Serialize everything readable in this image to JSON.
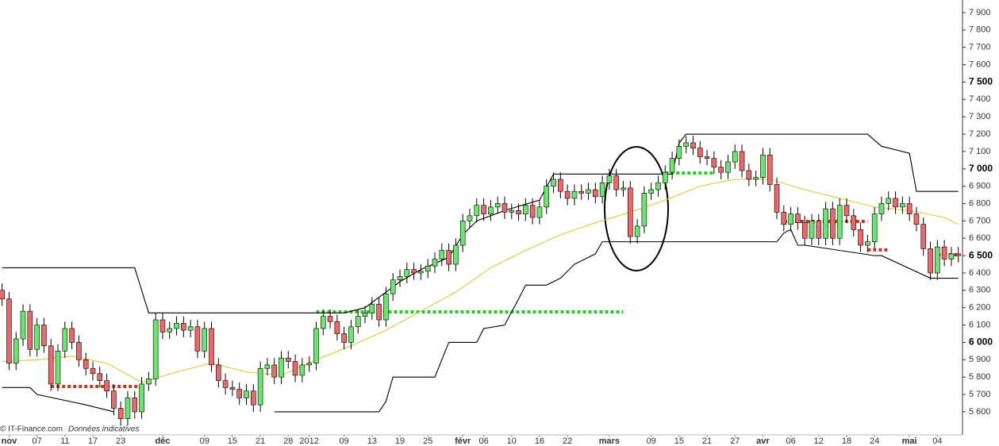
{
  "chart_data": {
    "type": "candlestick",
    "source": "© IT-Finance.com",
    "note": "Données indicatives",
    "xlim": [
      -0.3,
      137.6
    ],
    "ylim": [
      5467,
      7973
    ],
    "yticks": [
      {
        "value": 5600,
        "label": "5 600"
      },
      {
        "value": 5700,
        "label": "5 700"
      },
      {
        "value": 5800,
        "label": "5 800"
      },
      {
        "value": 5900,
        "label": "5 900"
      },
      {
        "value": 6000,
        "label": "6 000"
      },
      {
        "value": 6100,
        "label": "6 100"
      },
      {
        "value": 6200,
        "label": "6 200"
      },
      {
        "value": 6300,
        "label": "6 300"
      },
      {
        "value": 6400,
        "label": "6 400"
      },
      {
        "value": 6500,
        "label": "6 500"
      },
      {
        "value": 6600,
        "label": "6 600"
      },
      {
        "value": 6700,
        "label": "6 700"
      },
      {
        "value": 6800,
        "label": "6 800"
      },
      {
        "value": 6900,
        "label": "6 900"
      },
      {
        "value": 7000,
        "label": "7 000"
      },
      {
        "value": 7100,
        "label": "7 100"
      },
      {
        "value": 7200,
        "label": "7 200"
      },
      {
        "value": 7300,
        "label": "7 300"
      },
      {
        "value": 7400,
        "label": "7 400"
      },
      {
        "value": 7500,
        "label": "7 500"
      },
      {
        "value": 7600,
        "label": "7 600"
      },
      {
        "value": 7700,
        "label": "7 700"
      },
      {
        "value": 7800,
        "label": "7 800"
      },
      {
        "value": 7900,
        "label": "7 900"
      }
    ],
    "xticks": [
      {
        "value": 1,
        "label": "nov"
      },
      {
        "value": 5,
        "label": "07"
      },
      {
        "value": 9,
        "label": "11"
      },
      {
        "value": 13,
        "label": "17"
      },
      {
        "value": 17,
        "label": "23"
      },
      {
        "value": 23,
        "label": "déc"
      },
      {
        "value": 29,
        "label": "09"
      },
      {
        "value": 33,
        "label": "15"
      },
      {
        "value": 37,
        "label": "21"
      },
      {
        "value": 41,
        "label": "28"
      },
      {
        "value": 44,
        "label": "2012"
      },
      {
        "value": 49,
        "label": "09"
      },
      {
        "value": 53,
        "label": "13"
      },
      {
        "value": 57,
        "label": "19"
      },
      {
        "value": 61,
        "label": "25"
      },
      {
        "value": 66,
        "label": "févr"
      },
      {
        "value": 69,
        "label": "06"
      },
      {
        "value": 73,
        "label": "10"
      },
      {
        "value": 77,
        "label": "16"
      },
      {
        "value": 81,
        "label": "22"
      },
      {
        "value": 87,
        "label": "mars"
      },
      {
        "value": 93,
        "label": "09"
      },
      {
        "value": 97,
        "label": "15"
      },
      {
        "value": 101,
        "label": "21"
      },
      {
        "value": 105,
        "label": "27"
      },
      {
        "value": 109,
        "label": "avr"
      },
      {
        "value": 113,
        "label": "06"
      },
      {
        "value": 117,
        "label": "12"
      },
      {
        "value": 121,
        "label": "18"
      },
      {
        "value": 125,
        "label": "24"
      },
      {
        "value": 130,
        "label": "mai"
      },
      {
        "value": 134,
        "label": "04"
      }
    ],
    "up_color": "#6fe36f",
    "down_color": "#e86a6a",
    "open": [
      6300,
      6250,
      5880,
      6020,
      6180,
      5960,
      6100,
      5980,
      5760,
      5950,
      6080,
      6000,
      5900,
      5850,
      5820,
      5780,
      5720,
      5620,
      5560,
      5680,
      5600,
      5760,
      5790,
      6130,
      6060,
      6080,
      6110,
      6070,
      6090,
      5950,
      6080,
      5870,
      5780,
      5740,
      5730,
      5680,
      5720,
      5640,
      5850,
      5870,
      5800,
      5910,
      5890,
      5810,
      5870,
      5880,
      6080,
      6150,
      6120,
      6050,
      6000,
      6090,
      6150,
      6170,
      6220,
      6130,
      6280,
      6360,
      6380,
      6420,
      6400,
      6410,
      6440,
      6480,
      6530,
      6450,
      6560,
      6700,
      6730,
      6790,
      6740,
      6780,
      6800,
      6750,
      6760,
      6740,
      6790,
      6720,
      6780,
      6900,
      6940,
      6870,
      6830,
      6870,
      6860,
      6880,
      6840,
      6920,
      6960,
      6880,
      6890,
      6610,
      6670,
      6860,
      6880,
      6920,
      6980,
      7060,
      7130,
      7150,
      7120,
      7070,
      7060,
      7010,
      6980,
      7040,
      7100,
      6990,
      6940,
      6950,
      7080,
      6910,
      6750,
      6680,
      6740,
      6690,
      6600,
      6700,
      6600,
      6770,
      6600,
      6790,
      6730,
      6650,
      6560,
      6580,
      6740,
      6800,
      6830,
      6780,
      6800,
      6740,
      6680,
      6540,
      6400,
      6550,
      6480,
      6510
    ],
    "high": [
      6340,
      6290,
      6060,
      6220,
      6220,
      6140,
      6140,
      6020,
      5990,
      6120,
      6120,
      6040,
      5940,
      5890,
      5860,
      5820,
      5760,
      5660,
      5720,
      5720,
      5800,
      5830,
      6170,
      6170,
      6120,
      6150,
      6150,
      6130,
      6130,
      6120,
      6120,
      5910,
      5820,
      5780,
      5770,
      5760,
      5760,
      5890,
      5910,
      5910,
      5950,
      5950,
      5930,
      5910,
      5920,
      6120,
      6190,
      6190,
      6160,
      6090,
      6130,
      6190,
      6210,
      6260,
      6260,
      6320,
      6400,
      6420,
      6460,
      6460,
      6450,
      6480,
      6520,
      6570,
      6570,
      6600,
      6740,
      6770,
      6830,
      6830,
      6820,
      6840,
      6840,
      6800,
      6800,
      6830,
      6830,
      6820,
      6940,
      6980,
      6980,
      6910,
      6910,
      6910,
      6920,
      6920,
      6960,
      7000,
      7000,
      6930,
      6930,
      6710,
      6900,
      6920,
      6960,
      7020,
      7100,
      7170,
      7190,
      7190,
      7160,
      7110,
      7100,
      7050,
      7080,
      7140,
      7140,
      7030,
      6990,
      7120,
      7120,
      6950,
      6790,
      6780,
      6780,
      6730,
      6740,
      6740,
      6810,
      6810,
      6830,
      6830,
      6770,
      6690,
      6620,
      6780,
      6840,
      6870,
      6870,
      6840,
      6840,
      6780,
      6720,
      6580,
      6590,
      6590,
      6550,
      6550
    ],
    "low": [
      6210,
      5840,
      5840,
      5980,
      5920,
      5920,
      5940,
      5720,
      5720,
      5910,
      5960,
      5860,
      5810,
      5780,
      5740,
      5680,
      5580,
      5520,
      5520,
      5560,
      5560,
      5720,
      5750,
      6020,
      6020,
      6040,
      6030,
      6030,
      5910,
      5910,
      5830,
      5740,
      5700,
      5690,
      5640,
      5640,
      5600,
      5600,
      5810,
      5760,
      5760,
      5850,
      5770,
      5770,
      5830,
      5840,
      6040,
      6080,
      6010,
      5960,
      5960,
      6050,
      6110,
      6130,
      6090,
      6090,
      6240,
      6320,
      6340,
      6360,
      6360,
      6370,
      6400,
      6440,
      6410,
      6410,
      6520,
      6660,
      6690,
      6700,
      6700,
      6740,
      6710,
      6710,
      6700,
      6700,
      6680,
      6680,
      6740,
      6860,
      6830,
      6790,
      6790,
      6820,
      6820,
      6800,
      6800,
      6880,
      6840,
      6840,
      6570,
      6570,
      6630,
      6820,
      6840,
      6880,
      6940,
      7020,
      7090,
      7080,
      7030,
      7020,
      6970,
      6940,
      6940,
      7000,
      6950,
      6900,
      6900,
      6910,
      6870,
      6710,
      6640,
      6640,
      6650,
      6560,
      6560,
      6560,
      6560,
      6560,
      6560,
      6690,
      6610,
      6520,
      6520,
      6540,
      6700,
      6760,
      6740,
      6740,
      6700,
      6640,
      6500,
      6360,
      6360,
      6440,
      6440,
      6460
    ],
    "close": [
      6250,
      5880,
      6020,
      6180,
      5960,
      6100,
      5980,
      5760,
      5950,
      6080,
      6000,
      5900,
      5850,
      5820,
      5780,
      5720,
      5620,
      5560,
      5680,
      5600,
      5760,
      5790,
      6130,
      6060,
      6080,
      6110,
      6070,
      6090,
      5950,
      6080,
      5870,
      5780,
      5740,
      5730,
      5680,
      5720,
      5640,
      5850,
      5870,
      5800,
      5910,
      5890,
      5810,
      5870,
      5880,
      6080,
      6150,
      6120,
      6050,
      6000,
      6090,
      6150,
      6170,
      6220,
      6130,
      6280,
      6360,
      6380,
      6420,
      6400,
      6410,
      6440,
      6480,
      6530,
      6450,
      6560,
      6700,
      6730,
      6790,
      6740,
      6780,
      6800,
      6750,
      6760,
      6740,
      6790,
      6720,
      6780,
      6900,
      6940,
      6870,
      6830,
      6870,
      6860,
      6880,
      6840,
      6920,
      6960,
      6880,
      6890,
      6610,
      6670,
      6860,
      6880,
      6920,
      6980,
      7060,
      7130,
      7150,
      7120,
      7070,
      7060,
      7010,
      6980,
      7040,
      7100,
      6990,
      6940,
      6950,
      7080,
      6910,
      6750,
      6680,
      6740,
      6690,
      6600,
      6700,
      6600,
      6770,
      6600,
      6790,
      6730,
      6650,
      6560,
      6580,
      6740,
      6800,
      6830,
      6780,
      6800,
      6740,
      6680,
      6540,
      6400,
      6550,
      6480,
      6510,
      6500
    ],
    "lines": [
      {
        "color": "#000000",
        "x": [
          0,
          19,
          21,
          49,
          52,
          55,
          57,
          60,
          64,
          66,
          68,
          72,
          77,
          79,
          96,
          97,
          98,
          124,
          126,
          130,
          131,
          137
        ],
        "values": [
          6430,
          6430,
          6170,
          6170,
          6200,
          6290,
          6350,
          6420,
          6490,
          6620,
          6700,
          6760,
          6820,
          6970,
          6970,
          7150,
          7200,
          7200,
          7130,
          7090,
          6870,
          6870
        ]
      },
      {
        "color": "#000000",
        "x": [
          0,
          4,
          5,
          12,
          16,
          17,
          38,
          39,
          54,
          55,
          56,
          62,
          64,
          68,
          69,
          72,
          74,
          75,
          78,
          80,
          82,
          85,
          86,
          89,
          111,
          112,
          113,
          114,
          115,
          125,
          126,
          133,
          137
        ],
        "values": [
          5740,
          5740,
          5700,
          5640,
          5600,
          null,
          null,
          5600,
          5600,
          5660,
          5800,
          5800,
          6000,
          6000,
          6080,
          6100,
          6250,
          6330,
          6330,
          6370,
          6450,
          6510,
          6580,
          6580,
          6580,
          6630,
          6650,
          6560,
          6560,
          6500,
          6500,
          6370,
          6370
        ]
      },
      {
        "color": "#d9c83a",
        "x": [
          0,
          5,
          10,
          15,
          20,
          25,
          30,
          35,
          40,
          45,
          50,
          55,
          60,
          65,
          70,
          75,
          80,
          85,
          90,
          95,
          100,
          105,
          110,
          115,
          120,
          125,
          130,
          135,
          137
        ],
        "values": [
          5890,
          5900,
          5920,
          5880,
          5770,
          5830,
          5880,
          5830,
          5810,
          5900,
          5980,
          6070,
          6180,
          6290,
          6430,
          6530,
          6620,
          6690,
          6750,
          6820,
          6900,
          6940,
          6940,
          6880,
          6830,
          6780,
          6760,
          6720,
          6680
        ]
      }
    ],
    "levels": [
      {
        "color": "#c0391b",
        "x": [
          7,
          20
        ],
        "value": 5746
      },
      {
        "color": "#22cc22",
        "x": [
          45,
          89
        ],
        "value": 6176
      },
      {
        "color": "#22cc22",
        "x": [
          95,
          102
        ],
        "value": 6976
      },
      {
        "color": "#c0391b",
        "x": [
          112,
          124
        ],
        "value": 6697
      },
      {
        "color": "#c0391b",
        "x": [
          124,
          127
        ],
        "value": 6533
      },
      {
        "color": "#c0391b",
        "x": [
          134,
          137
        ],
        "value": 6505
      }
    ]
  }
}
